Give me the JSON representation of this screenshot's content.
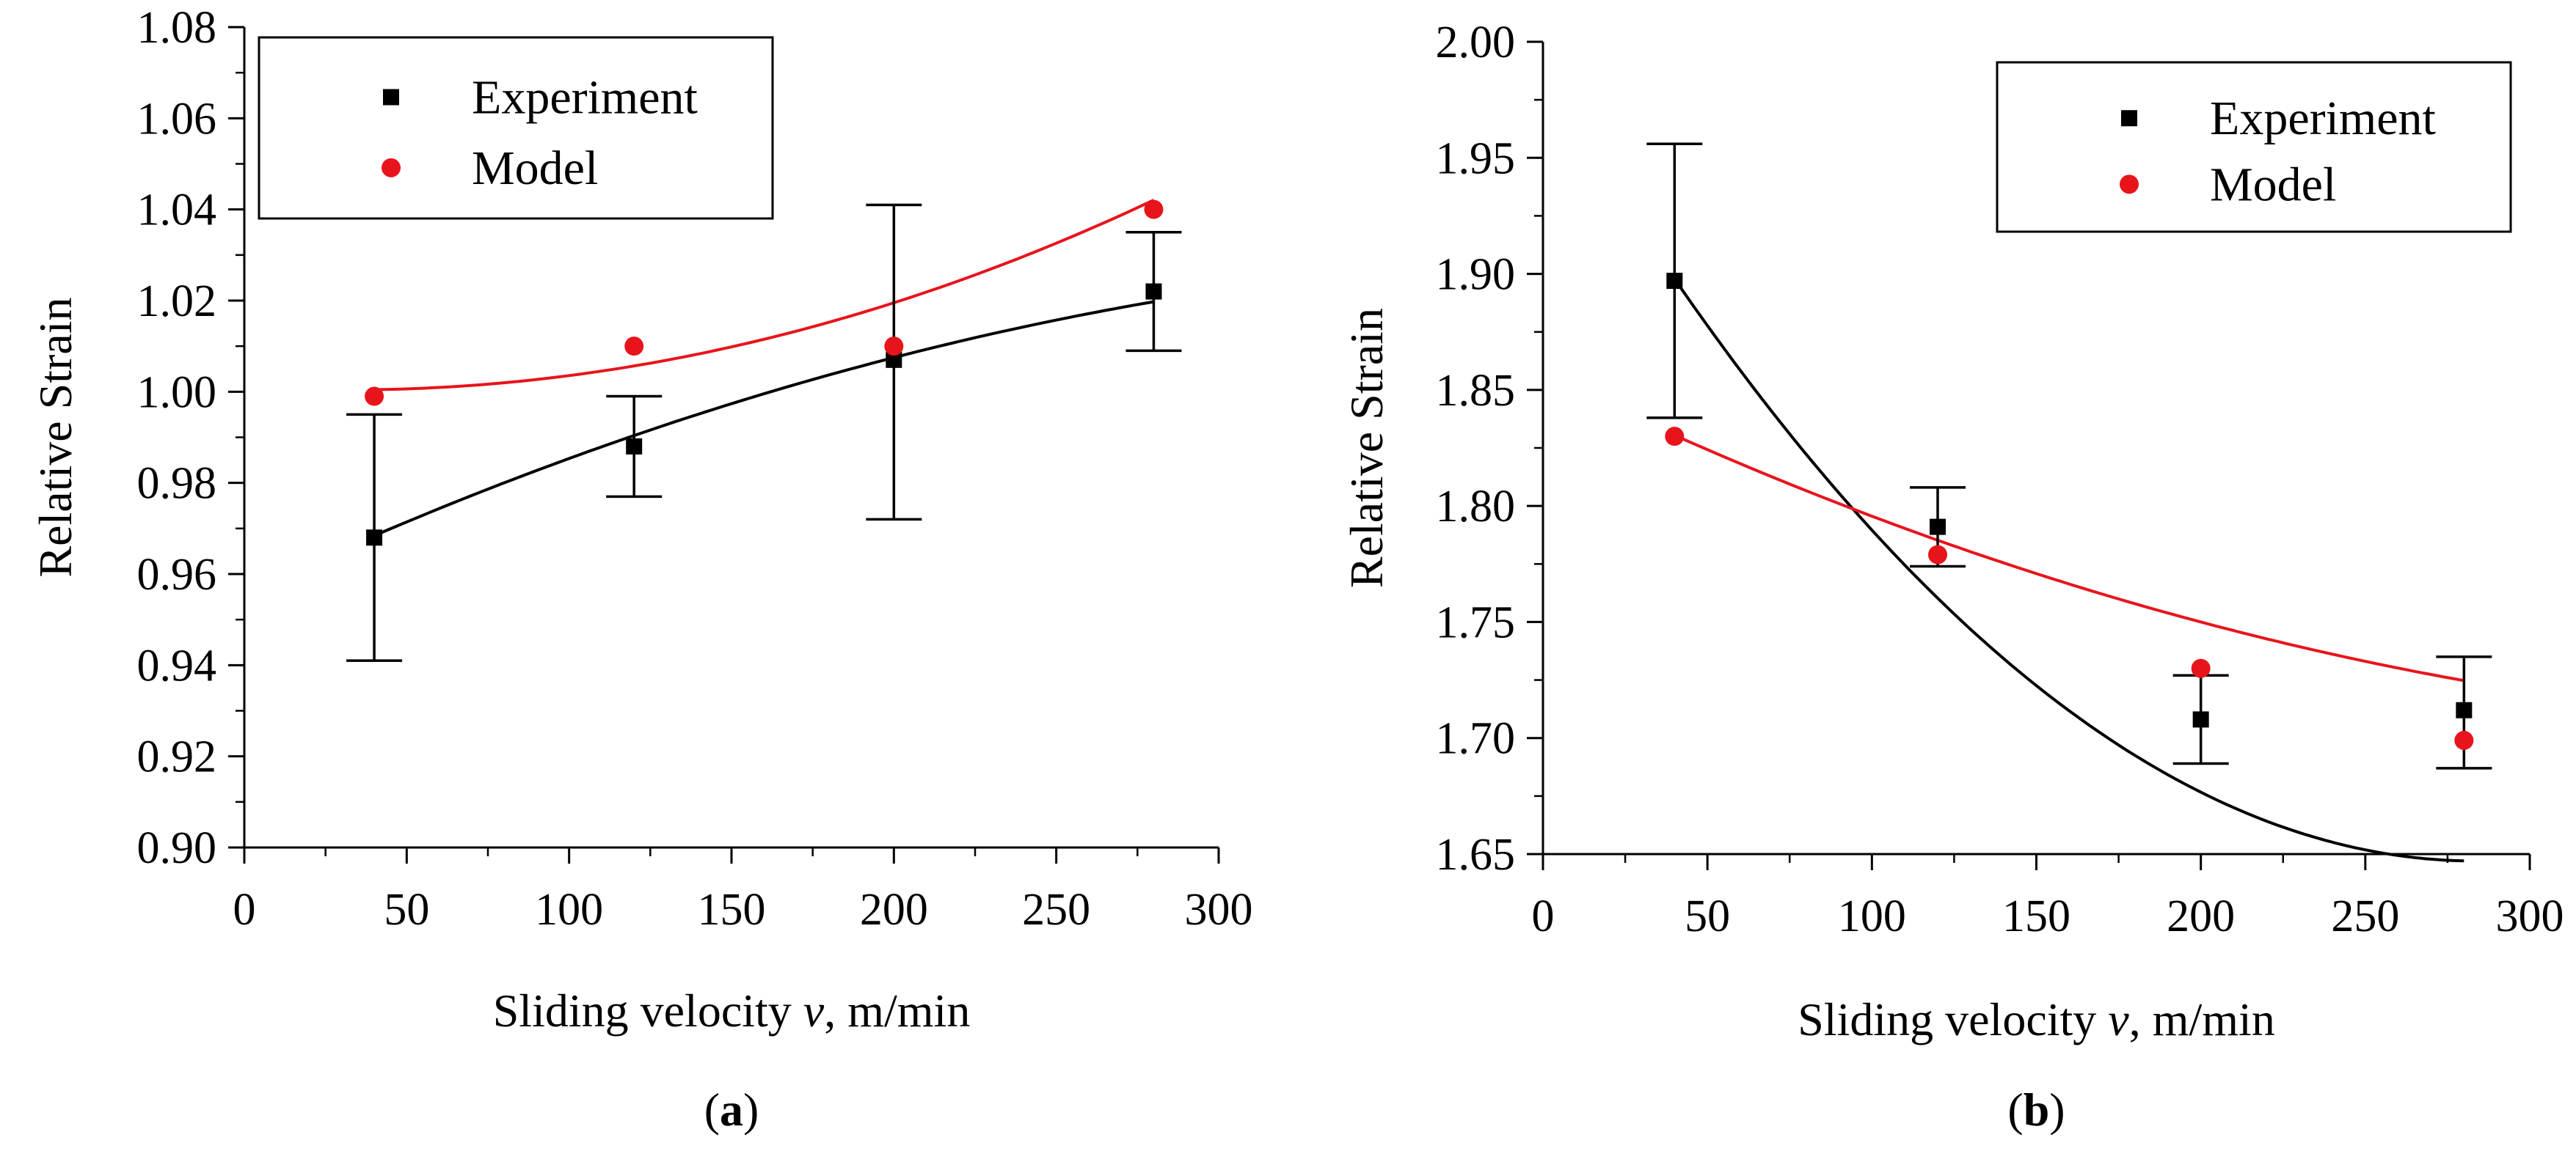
{
  "chart_data": [
    {
      "type": "scatter",
      "panel_label": "a",
      "xlabel": {
        "main": "Sliding velocity ",
        "var": "v",
        "unit": ", m/min"
      },
      "ylabel": "Relative Strain",
      "xlim": [
        0,
        300
      ],
      "ylim": [
        0.9,
        1.08
      ],
      "xticks": [
        0,
        50,
        100,
        150,
        200,
        250,
        300
      ],
      "yticks": [
        0.9,
        0.92,
        0.94,
        0.96,
        0.98,
        1.0,
        1.02,
        1.04,
        1.06,
        1.08
      ],
      "ydecimals": 2,
      "grid": false,
      "legend_position": "top-left",
      "series": [
        {
          "name": "Experiment",
          "marker": "square",
          "color": "#000000",
          "x": [
            40,
            120,
            200,
            280
          ],
          "y": [
            0.968,
            0.988,
            1.007,
            1.022
          ],
          "err_low": [
            0.941,
            0.977,
            0.972,
            1.009
          ],
          "err_high": [
            0.995,
            0.999,
            1.041,
            1.035
          ],
          "curve": {
            "kind": "quadratic",
            "coef": [
              0.9556,
              0.0003355,
              -3.8e-07
            ]
          }
        },
        {
          "name": "Model",
          "marker": "circle",
          "color": "#e8141c",
          "x": [
            40,
            120,
            200,
            280
          ],
          "y": [
            0.999,
            1.01,
            1.01,
            1.04
          ],
          "curve": {
            "kind": "quadratic",
            "coef": [
              1.0011,
              -4.33e-05,
              6.77e-07
            ]
          }
        }
      ]
    },
    {
      "type": "scatter",
      "panel_label": "b",
      "xlabel": {
        "main": "Sliding velocity ",
        "var": "v",
        "unit": ", m/min"
      },
      "ylabel": "Relative Strain",
      "xlim": [
        0,
        300
      ],
      "ylim": [
        1.65,
        2.0
      ],
      "xticks": [
        0,
        50,
        100,
        150,
        200,
        250,
        300
      ],
      "yticks": [
        1.65,
        1.7,
        1.75,
        1.8,
        1.85,
        1.9,
        1.95,
        2.0
      ],
      "ydecimals": 2,
      "grid": false,
      "legend_position": "top-right",
      "series": [
        {
          "name": "Experiment",
          "marker": "square",
          "color": "#000000",
          "x": [
            40,
            120,
            200,
            280
          ],
          "y": [
            1.897,
            1.791,
            1.708,
            1.712
          ],
          "err_low": [
            1.838,
            1.774,
            1.689,
            1.687
          ],
          "err_high": [
            1.956,
            1.808,
            1.727,
            1.735
          ],
          "curve": {
            "kind": "quadratic",
            "coef": [
              1.9869,
              -0.0023948,
              4.218e-06
            ]
          }
        },
        {
          "name": "Model",
          "marker": "circle",
          "color": "#e8141c",
          "x": [
            40,
            120,
            200,
            280
          ],
          "y": [
            1.83,
            1.779,
            1.73,
            1.699
          ],
          "curve": {
            "kind": "quadratic",
            "coef": [
              1.8568,
              -0.00069,
              7.8e-07
            ]
          }
        }
      ]
    }
  ]
}
